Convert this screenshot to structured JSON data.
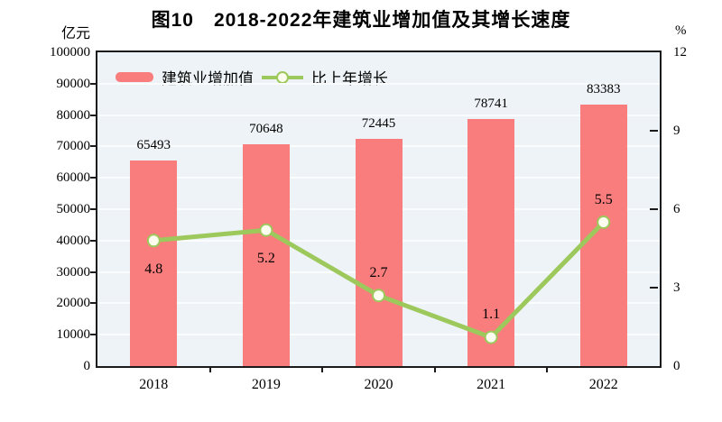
{
  "title": "图10　2018-2022年建筑业增加值及其增长速度",
  "axes": {
    "left": {
      "unit": "亿元",
      "ticks": [
        0,
        10000,
        20000,
        30000,
        40000,
        50000,
        60000,
        70000,
        80000,
        90000,
        100000
      ],
      "range": [
        0,
        100000
      ]
    },
    "right": {
      "unit": "%",
      "ticks": [
        0,
        3,
        6,
        9,
        12
      ],
      "range": [
        0,
        12
      ]
    }
  },
  "legend": {
    "items": [
      {
        "label": "建筑业增加值",
        "swatch": "bar"
      },
      {
        "label": "比上年增长",
        "swatch": "line"
      }
    ]
  },
  "chart_data": {
    "type": "bar+line",
    "title": "图10　2018-2022年建筑业增加值及其增长速度",
    "categories": [
      "2018",
      "2019",
      "2020",
      "2021",
      "2022"
    ],
    "series": [
      {
        "name": "建筑业增加值",
        "type": "bar",
        "axis": "left",
        "unit": "亿元",
        "values": [
          65493,
          70648,
          72445,
          78741,
          83383
        ]
      },
      {
        "name": "比上年增长",
        "type": "line",
        "axis": "right",
        "unit": "%",
        "values": [
          4.8,
          5.2,
          2.7,
          1.1,
          5.5
        ],
        "label_positions": [
          "below",
          "below",
          "above",
          "above",
          "above"
        ]
      }
    ],
    "left_ylim": [
      0,
      100000
    ],
    "right_ylim": [
      0,
      12
    ],
    "grid": true,
    "legend_position": "top-left"
  },
  "colors": {
    "bar": "#F97D7D",
    "line": "#9CC85C",
    "marker_fill": "#FDFDEF",
    "plot_bg": "#EDF3F6",
    "gridline": "#FAFCFD",
    "axis": "#1B1B1B",
    "text": "#000000"
  }
}
